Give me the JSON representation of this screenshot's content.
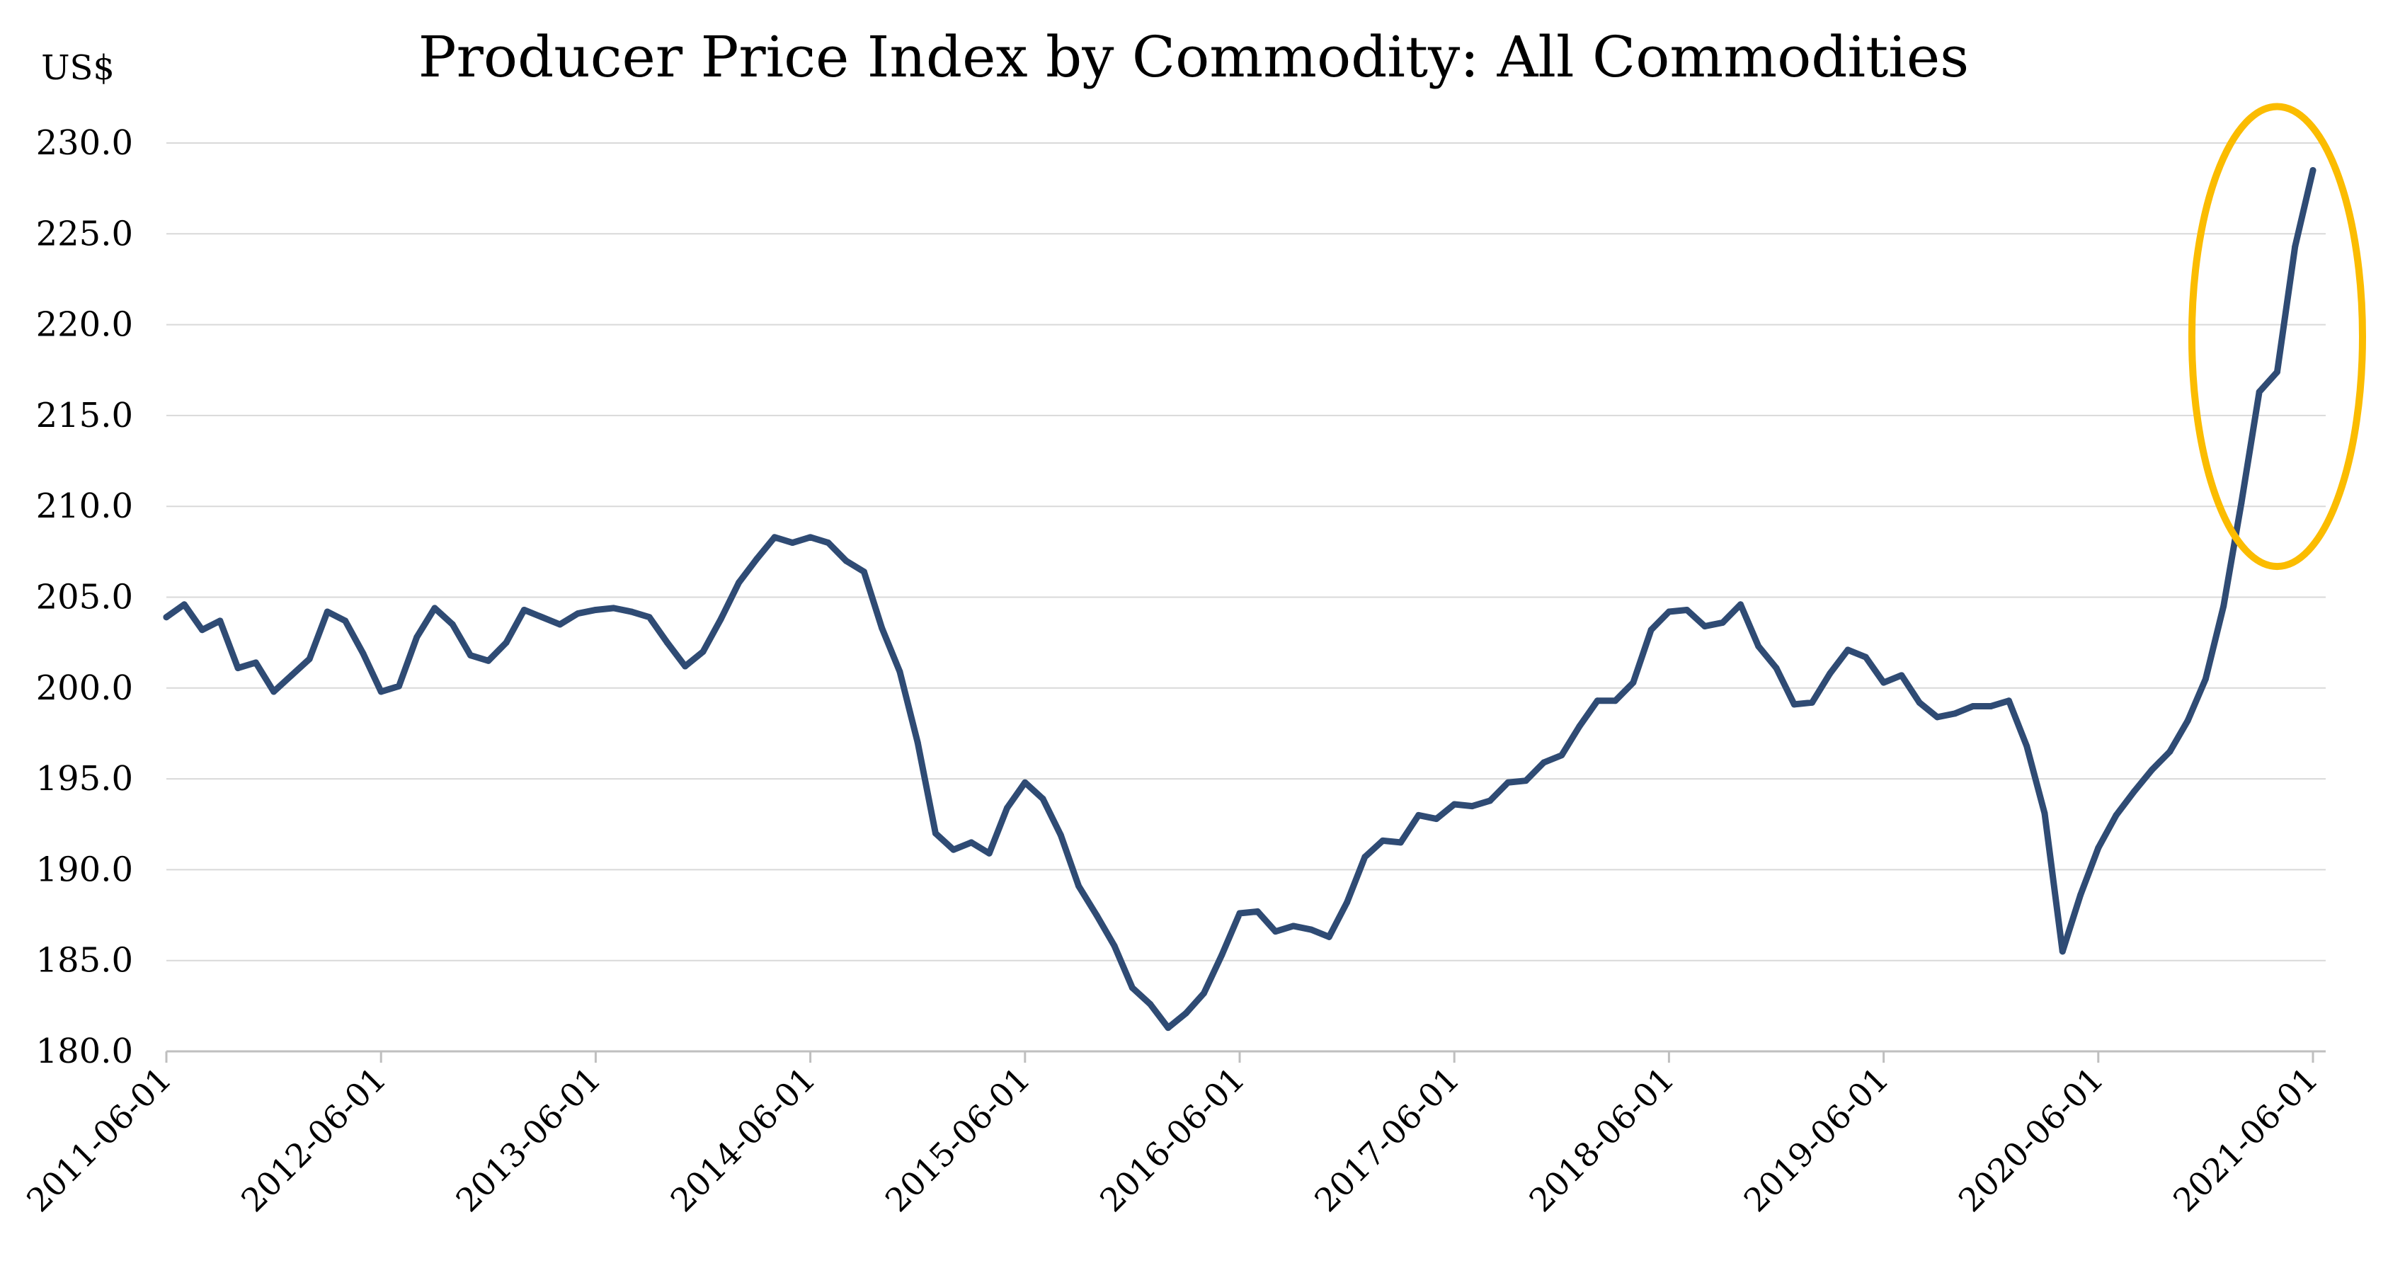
{
  "chart_data": {
    "type": "line",
    "title": "Producer Price Index by Commodity: All Commodities",
    "ylabel": "US$",
    "xlabel": "",
    "ylim": [
      180,
      230
    ],
    "yticks": [
      "180.0",
      "185.0",
      "190.0",
      "195.0",
      "200.0",
      "205.0",
      "210.0",
      "215.0",
      "220.0",
      "225.0",
      "230.0"
    ],
    "xlim": [
      0,
      120
    ],
    "xtick_labels": [
      "2011-06-01",
      "2012-06-01",
      "2013-06-01",
      "2014-06-01",
      "2015-06-01",
      "2016-06-01",
      "2017-06-01",
      "2018-06-01",
      "2019-06-01",
      "2020-06-01",
      "2021-06-01"
    ],
    "grid": true,
    "legend": "none",
    "series": [
      {
        "name": "Producer Price Index by Commodity: All Commodities",
        "color": "#2f4b74",
        "x": [
          0,
          1,
          2,
          3,
          4,
          5,
          6,
          7,
          8,
          9,
          10,
          11,
          12,
          13,
          14,
          15,
          16,
          17,
          18,
          19,
          20,
          21,
          22,
          23,
          24,
          25,
          26,
          27,
          28,
          29,
          30,
          31,
          32,
          33,
          34,
          35,
          36,
          37,
          38,
          39,
          40,
          41,
          42,
          43,
          44,
          45,
          46,
          47,
          48,
          49,
          50,
          51,
          52,
          53,
          54,
          55,
          56,
          57,
          58,
          59,
          60,
          61,
          62,
          63,
          64,
          65,
          66,
          67,
          68,
          69,
          70,
          71,
          72,
          73,
          74,
          75,
          76,
          77,
          78,
          79,
          80,
          81,
          82,
          83,
          84,
          85,
          86,
          87,
          88,
          89,
          90,
          91,
          92,
          93,
          94,
          95,
          96,
          97,
          98,
          99,
          100,
          101,
          102,
          103,
          104,
          105,
          106,
          107,
          108,
          109,
          110,
          111,
          112,
          113,
          114,
          115,
          116,
          117,
          118,
          119,
          120
        ],
        "values": [
          203.9,
          204.6,
          203.2,
          203.7,
          201.1,
          201.4,
          199.8,
          200.7,
          201.6,
          204.2,
          203.7,
          201.9,
          199.8,
          200.1,
          202.8,
          204.4,
          203.5,
          201.8,
          201.5,
          202.5,
          204.3,
          203.9,
          203.5,
          204.1,
          204.3,
          204.4,
          204.2,
          203.9,
          202.5,
          201.2,
          202.0,
          203.8,
          205.8,
          207.1,
          208.3,
          208.0,
          208.3,
          208.0,
          207.0,
          206.4,
          203.3,
          200.9,
          197.0,
          192.0,
          191.1,
          191.5,
          190.9,
          193.4,
          194.8,
          193.9,
          191.9,
          189.1,
          187.5,
          185.8,
          183.5,
          182.6,
          181.3,
          182.1,
          183.2,
          185.3,
          187.6,
          187.7,
          186.6,
          186.9,
          186.7,
          186.3,
          188.2,
          190.7,
          191.6,
          191.5,
          193.0,
          192.8,
          193.6,
          193.5,
          193.8,
          194.8,
          194.9,
          195.9,
          196.3,
          197.9,
          199.3,
          199.3,
          200.3,
          203.2,
          204.2,
          204.3,
          203.4,
          203.6,
          204.6,
          202.3,
          201.1,
          199.1,
          199.2,
          200.8,
          202.1,
          201.7,
          200.3,
          200.7,
          199.2,
          198.4,
          198.6,
          199.0,
          199.0,
          199.3,
          196.8,
          193.1,
          185.5,
          188.6,
          191.2,
          193.0,
          194.3,
          195.5,
          196.5,
          198.2,
          200.5,
          204.5,
          210.2,
          216.3,
          217.4,
          224.3,
          228.5
        ]
      }
    ],
    "annotations": [
      {
        "type": "ellipse",
        "color": "#fbbc00",
        "label": "",
        "highlights_x_range": [
          116,
          120
        ]
      }
    ]
  }
}
